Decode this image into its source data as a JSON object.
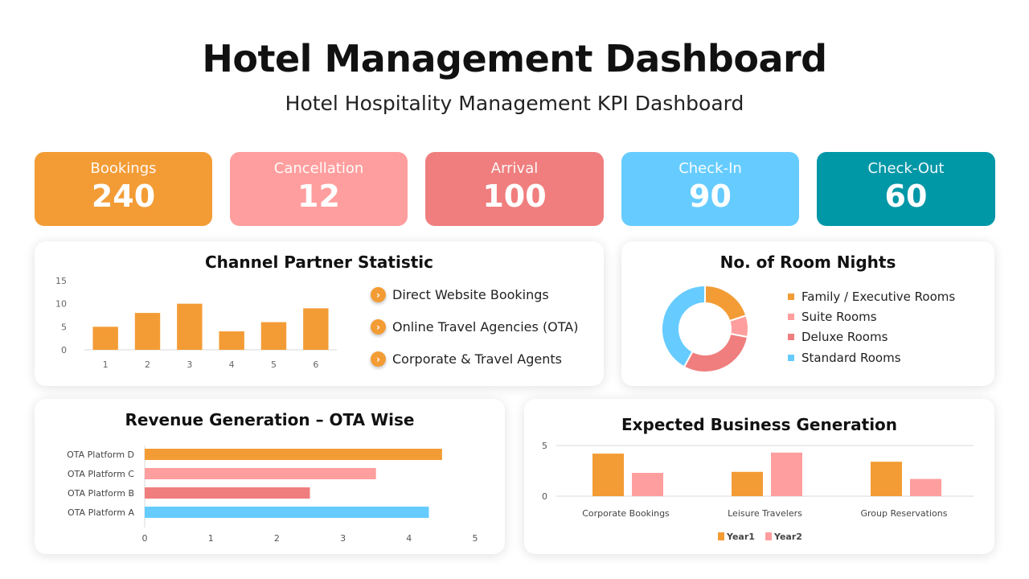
{
  "header": {
    "title": "Hotel Management Dashboard",
    "subtitle": "Hotel Hospitality Management KPI Dashboard"
  },
  "kpis": [
    {
      "label": "Bookings",
      "value": "240",
      "color": "#F39C35"
    },
    {
      "label": "Cancellation",
      "value": "12",
      "color": "#FF9E9E"
    },
    {
      "label": "Arrival",
      "value": "100",
      "color": "#F07E7E"
    },
    {
      "label": "Check-In",
      "value": "90",
      "color": "#66CCFF"
    },
    {
      "label": "Check-Out",
      "value": "60",
      "color": "#0097A7"
    }
  ],
  "channel_bullets": [
    "Direct Website Bookings",
    "Online Travel Agencies (OTA)",
    "Corporate & Travel Agents"
  ],
  "chart_data": [
    {
      "id": "channel",
      "type": "bar",
      "title": "Channel Partner Statistic",
      "categories": [
        "1",
        "2",
        "3",
        "4",
        "5",
        "6"
      ],
      "values": [
        5,
        8,
        10,
        4,
        6,
        9
      ],
      "ylim": [
        0,
        15
      ],
      "yticks": [
        "0",
        "5",
        "10",
        "15"
      ],
      "color": "#F39C35",
      "grid": false
    },
    {
      "id": "rooms",
      "type": "pie",
      "title": "No. of Room Nights",
      "donut": true,
      "labels": [
        "Family / Executive Rooms",
        "Suite Rooms",
        "Deluxe Rooms",
        "Standard Rooms"
      ],
      "values": [
        20,
        8,
        30,
        42
      ],
      "colors": [
        "#F39C35",
        "#FF9E9E",
        "#F07E7E",
        "#66CCFF"
      ],
      "legend": "right"
    },
    {
      "id": "ota",
      "type": "bar",
      "orientation": "horizontal",
      "title": "Revenue Generation – OTA Wise",
      "categories": [
        "OTA Platform D",
        "OTA Platform C",
        "OTA Platform B",
        "OTA Platform A"
      ],
      "values": [
        4.5,
        3.5,
        2.5,
        4.3
      ],
      "colors": [
        "#F39C35",
        "#FF9E9E",
        "#F07E7E",
        "#66CCFF"
      ],
      "xlim": [
        0,
        5
      ],
      "xticks": [
        "0",
        "1",
        "2",
        "3",
        "4",
        "5"
      ]
    },
    {
      "id": "business",
      "type": "bar",
      "title": "Expected Business Generation",
      "categories": [
        "Corporate Bookings",
        "Leisure Travelers",
        "Group Reservations"
      ],
      "series": [
        {
          "name": "Year1",
          "values": [
            4.2,
            2.4,
            3.4
          ],
          "color": "#F39C35"
        },
        {
          "name": "Year2",
          "values": [
            2.3,
            4.3,
            1.7
          ],
          "color": "#FF9E9E"
        }
      ],
      "ylim": [
        0,
        5
      ],
      "yticks": [
        "0",
        "5"
      ],
      "grid": true,
      "legend": "bottom"
    }
  ]
}
